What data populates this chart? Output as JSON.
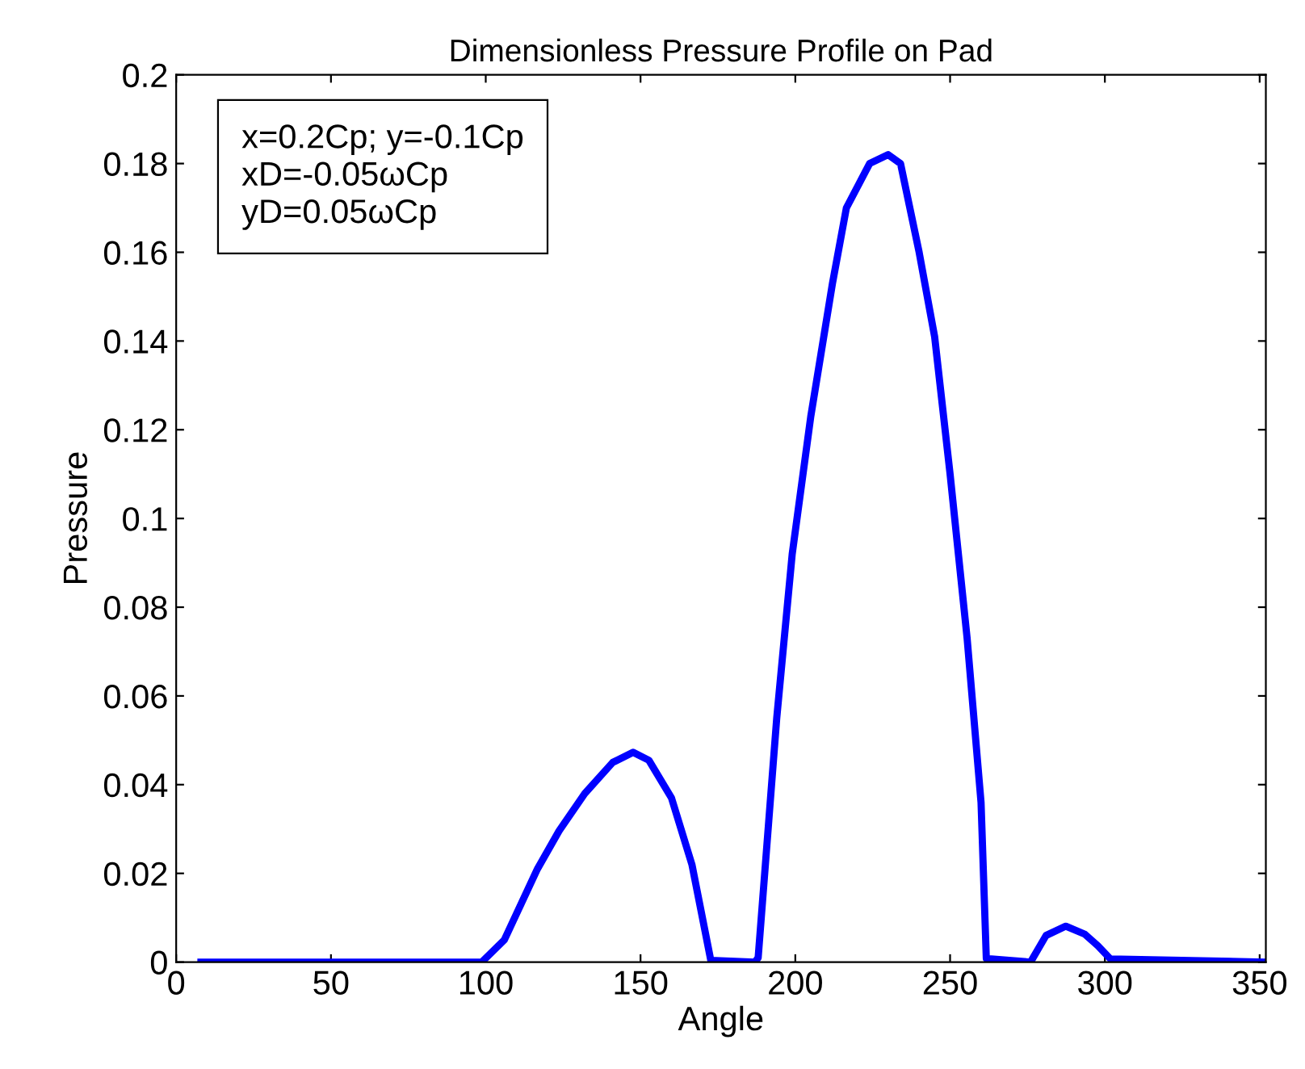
{
  "chart_data": {
    "type": "line",
    "title": "Dimensionless Pressure Profile on Pad",
    "xlabel": "Angle",
    "ylabel": "Pressure",
    "annotations": [
      "x=0.2Cp; y=-0.1Cp\nxD=-0.05ωCp\nyD=0.05ωCp"
    ],
    "x": [
      8,
      98.7,
      106,
      116.7,
      123.7,
      132,
      141,
      147.6,
      152.7,
      160,
      166.6,
      172.7,
      187,
      188,
      194,
      199,
      205,
      212,
      216.5,
      224,
      230,
      234,
      240,
      245,
      250,
      255.5,
      260,
      261.7,
      276,
      281,
      287.4,
      293.5,
      297.7,
      301.8,
      352
    ],
    "series": [
      {
        "color": "#0000ff",
        "values": [
          0,
          0,
          0.005,
          0.021,
          0.0296,
          0.038,
          0.045,
          0.0473,
          0.0455,
          0.037,
          0.022,
          0.0004,
          0,
          0.001,
          0.055,
          0.092,
          0.123,
          0.153,
          0.17,
          0.18,
          0.182,
          0.18,
          0.16,
          0.141,
          0.11,
          0.073,
          0.036,
          0.0008,
          0,
          0.006,
          0.0081,
          0.0063,
          0.0037,
          0.0007,
          0
        ]
      }
    ],
    "xlim": [
      0,
      352
    ],
    "xticks": [
      0,
      50,
      100,
      150,
      200,
      250,
      300,
      350
    ],
    "ylim": [
      0,
      0.2
    ],
    "yticks": [
      0,
      0.02,
      0.04,
      0.06,
      0.08,
      0.1,
      0.12,
      0.14,
      0.16,
      0.18,
      0.2
    ],
    "grid": false,
    "legend": false,
    "marker": "none",
    "line_style": "solid"
  }
}
